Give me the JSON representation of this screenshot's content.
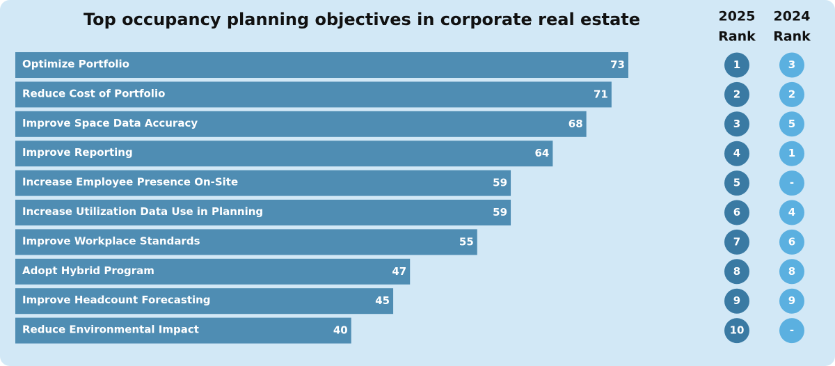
{
  "chart_data": {
    "type": "bar",
    "orientation": "horizontal",
    "title": "Top occupancy planning objectives in corporate real estate",
    "categories": [
      "Optimize Portfolio",
      "Reduce Cost of Portfolio",
      "Improve Space Data Accuracy",
      "Improve Reporting",
      "Increase Employee Presence On-Site",
      "Increase Utilization Data Use in Planning",
      "Improve Workplace Standards",
      "Adopt Hybrid Program",
      "Improve Headcount Forecasting",
      "Reduce Environmental Impact"
    ],
    "values": [
      73,
      71,
      68,
      64,
      59,
      59,
      55,
      47,
      45,
      40
    ],
    "color": "#4f8db3",
    "rank_columns": [
      {
        "header": [
          "2025",
          "Rank"
        ],
        "color": "#3a7aa3",
        "values": [
          1,
          2,
          3,
          4,
          5,
          6,
          7,
          8,
          9,
          10
        ]
      },
      {
        "header": [
          "2024",
          "Rank"
        ],
        "color": "#5bb0e0",
        "values": [
          3,
          2,
          5,
          1,
          "-",
          4,
          6,
          8,
          9,
          "-"
        ]
      }
    ]
  }
}
